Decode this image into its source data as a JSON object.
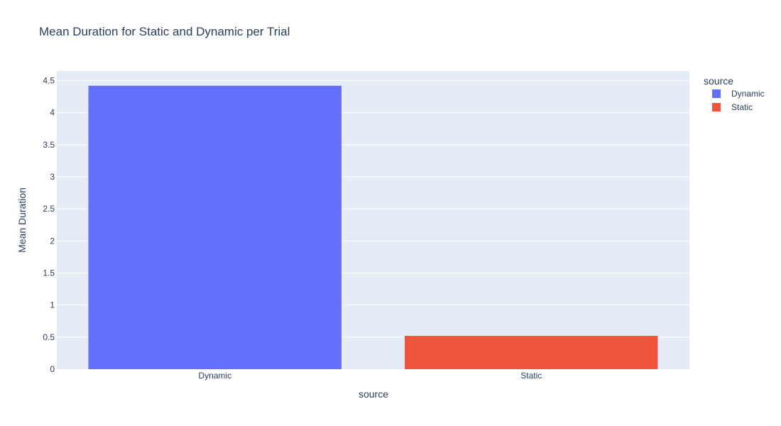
{
  "chart_data": {
    "type": "bar",
    "title": "Mean Duration for Static and Dynamic per Trial",
    "xlabel": "source",
    "ylabel": "Mean Duration",
    "categories": [
      "Dynamic",
      "Static"
    ],
    "series": [
      {
        "name": "Dynamic",
        "values": [
          4.42,
          null
        ],
        "color": "#636efa"
      },
      {
        "name": "Static",
        "values": [
          null,
          0.52
        ],
        "color": "#ef553b"
      }
    ],
    "ylim": [
      0,
      4.65
    ],
    "yticks": [
      "0",
      "0.5",
      "1",
      "1.5",
      "2",
      "2.5",
      "3",
      "3.5",
      "4",
      "4.5"
    ],
    "ytick_values": [
      0,
      0.5,
      1,
      1.5,
      2,
      2.5,
      3,
      3.5,
      4,
      4.5
    ],
    "grid": true,
    "plot_background": "#e5ecf6",
    "legend": {
      "title": "source",
      "placement": "top-right, outside plot",
      "items": [
        "Dynamic",
        "Static"
      ]
    }
  }
}
